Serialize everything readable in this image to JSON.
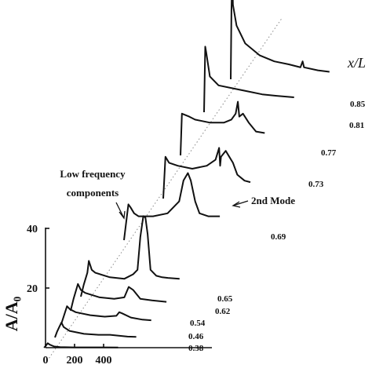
{
  "chart_data": {
    "type": "line",
    "title": "",
    "xlabel": "",
    "ylabel": "A/A₀",
    "series_header": "x/L",
    "x_ticks": [
      "0",
      "200",
      "400"
    ],
    "y_ticks": [
      "20",
      "40"
    ],
    "xlim": [
      0,
      800
    ],
    "ylim": [
      0,
      50
    ],
    "grid": false,
    "annotations": [
      {
        "text_lines": [
          "Low frequency",
          "components"
        ],
        "target_series": "0.69"
      },
      {
        "text_lines": [
          "2nd Mode"
        ],
        "target_series": "0.69"
      }
    ],
    "series": [
      {
        "name": "0.38",
        "points": [
          [
            -10,
            0
          ],
          [
            0,
            0.5
          ],
          [
            15,
            1.5
          ],
          [
            30,
            1
          ],
          [
            60,
            0.4
          ],
          [
            100,
            0.2
          ],
          [
            200,
            0.1
          ],
          [
            300,
            0.1
          ],
          [
            400,
            0.1
          ],
          [
            500,
            0.05
          ]
        ]
      },
      {
        "name": "0.46",
        "points": [
          [
            0,
            0
          ],
          [
            15,
            2
          ],
          [
            30,
            3.5
          ],
          [
            45,
            5
          ],
          [
            60,
            3.5
          ],
          [
            100,
            2.2
          ],
          [
            200,
            1.2
          ],
          [
            300,
            0.9
          ],
          [
            380,
            0.9
          ],
          [
            440,
            0.6
          ],
          [
            500,
            0.3
          ],
          [
            560,
            0.2
          ]
        ]
      },
      {
        "name": "0.54",
        "points": [
          [
            0,
            0
          ],
          [
            20,
            3
          ],
          [
            40,
            6
          ],
          [
            60,
            5
          ],
          [
            100,
            4
          ],
          [
            200,
            3
          ],
          [
            300,
            2.5
          ],
          [
            380,
            2.8
          ],
          [
            400,
            4
          ],
          [
            420,
            3.6
          ],
          [
            480,
            2.2
          ],
          [
            560,
            1.5
          ],
          [
            620,
            1.3
          ]
        ]
      },
      {
        "name": "0.62",
        "points": [
          [
            0,
            0
          ],
          [
            20,
            4
          ],
          [
            50,
            9
          ],
          [
            70,
            7
          ],
          [
            100,
            6
          ],
          [
            200,
            4.5
          ],
          [
            300,
            4
          ],
          [
            370,
            4.5
          ],
          [
            400,
            8
          ],
          [
            430,
            7
          ],
          [
            480,
            4
          ],
          [
            560,
            3.5
          ],
          [
            660,
            3
          ]
        ]
      },
      {
        "name": "0.65",
        "points": [
          [
            0,
            0
          ],
          [
            20,
            4
          ],
          [
            45,
            8
          ],
          [
            55,
            12
          ],
          [
            75,
            9
          ],
          [
            100,
            8
          ],
          [
            200,
            6.5
          ],
          [
            300,
            6
          ],
          [
            360,
            7.5
          ],
          [
            390,
            9
          ],
          [
            410,
            20
          ],
          [
            430,
            27
          ],
          [
            445,
            26.5
          ],
          [
            460,
            21
          ],
          [
            480,
            9
          ],
          [
            520,
            7
          ],
          [
            560,
            6.5
          ],
          [
            600,
            6.3
          ],
          [
            680,
            6
          ]
        ]
      },
      {
        "name": "0.69",
        "points": [
          [
            0,
            0
          ],
          [
            20,
            8
          ],
          [
            30,
            12
          ],
          [
            45,
            11
          ],
          [
            70,
            9
          ],
          [
            100,
            8
          ],
          [
            200,
            8
          ],
          [
            300,
            9
          ],
          [
            380,
            13
          ],
          [
            410,
            20
          ],
          [
            440,
            22.5
          ],
          [
            460,
            20
          ],
          [
            490,
            13
          ],
          [
            520,
            9
          ],
          [
            580,
            8
          ],
          [
            660,
            8
          ]
        ]
      },
      {
        "name": "0.73",
        "points": [
          [
            0,
            0
          ],
          [
            15,
            14
          ],
          [
            40,
            12
          ],
          [
            100,
            11
          ],
          [
            200,
            10
          ],
          [
            300,
            11
          ],
          [
            360,
            13
          ],
          [
            385,
            17
          ],
          [
            392,
            11
          ],
          [
            398,
            14
          ],
          [
            430,
            16
          ],
          [
            455,
            14
          ],
          [
            480,
            12
          ],
          [
            510,
            8
          ],
          [
            560,
            6
          ],
          [
            600,
            5.5
          ]
        ]
      },
      {
        "name": "0.77",
        "points": [
          [
            0,
            0
          ],
          [
            10,
            14
          ],
          [
            60,
            13
          ],
          [
            100,
            12
          ],
          [
            200,
            11
          ],
          [
            300,
            11
          ],
          [
            350,
            12
          ],
          [
            380,
            14
          ],
          [
            395,
            18
          ],
          [
            405,
            13
          ],
          [
            430,
            14
          ],
          [
            470,
            11
          ],
          [
            520,
            8
          ],
          [
            580,
            7.5
          ]
        ]
      },
      {
        "name": "0.81",
        "points": [
          [
            0,
            0
          ],
          [
            8,
            22
          ],
          [
            15,
            20
          ],
          [
            40,
            12
          ],
          [
            100,
            9
          ],
          [
            200,
            8
          ],
          [
            300,
            7
          ],
          [
            400,
            6
          ],
          [
            500,
            5.5
          ],
          [
            620,
            5
          ]
        ]
      },
      {
        "name": "0.85",
        "points": [
          [
            0,
            0
          ],
          [
            5,
            23
          ],
          [
            10,
            35
          ],
          [
            15,
            25
          ],
          [
            40,
            18
          ],
          [
            100,
            12
          ],
          [
            200,
            8
          ],
          [
            300,
            6
          ],
          [
            400,
            5
          ],
          [
            480,
            4
          ],
          [
            495,
            6
          ],
          [
            505,
            4
          ],
          [
            600,
            3
          ],
          [
            680,
            2.5
          ]
        ]
      }
    ]
  }
}
